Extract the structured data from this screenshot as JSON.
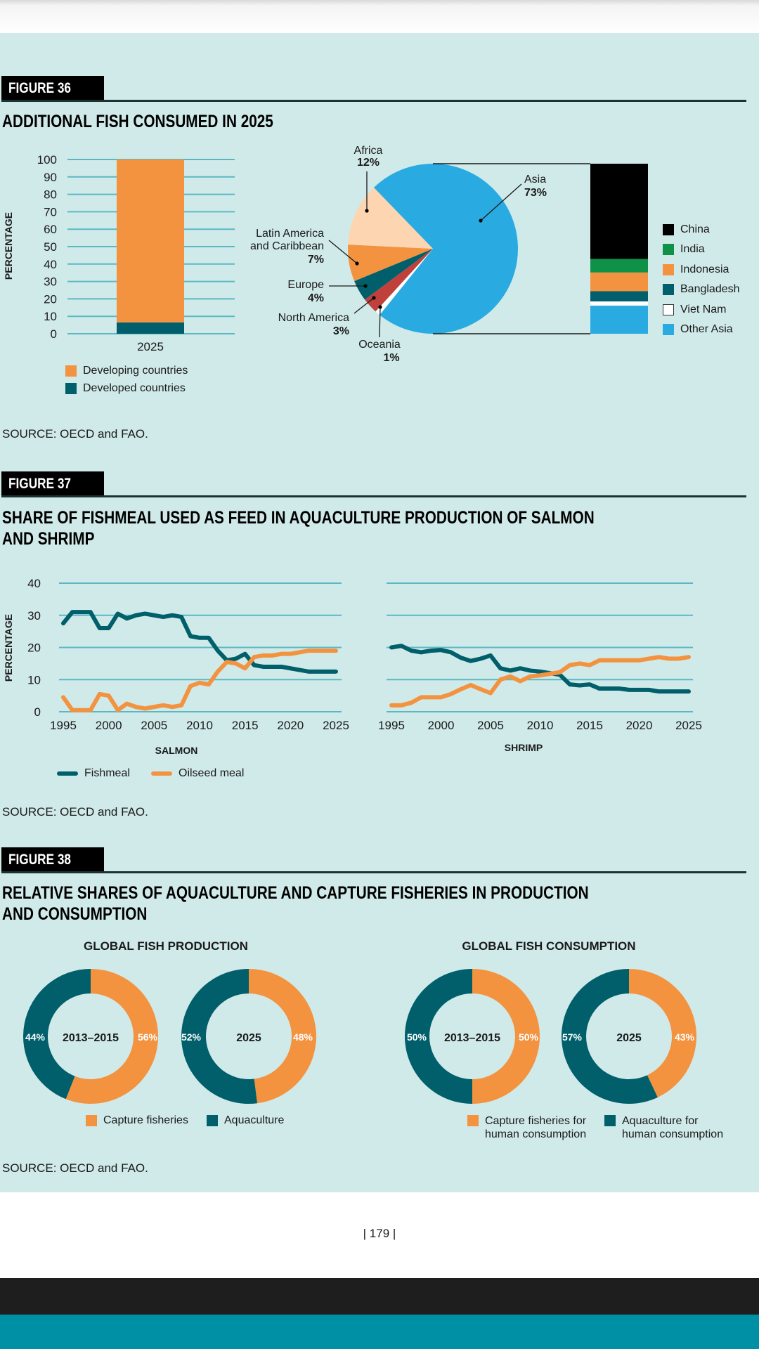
{
  "figures": [
    {
      "label": "FIGURE 36",
      "title_lines": [
        "ADDITIONAL FISH CONSUMED IN 2025"
      ],
      "source": "SOURCE: OECD and FAO."
    },
    {
      "label": "FIGURE 37",
      "title_lines": [
        "SHARE OF FISHMEAL USED AS FEED IN AQUACULTURE PRODUCTION OF SALMON",
        "AND SHRIMP"
      ],
      "source": "SOURCE: OECD and FAO."
    },
    {
      "label": "FIGURE 38",
      "title_lines": [
        "RELATIVE SHARES OF AQUACULTURE AND CAPTURE FISHERIES IN PRODUCTION",
        "AND CONSUMPTION"
      ],
      "source": "SOURCE: OECD and FAO."
    }
  ],
  "page_number": "| 179 |",
  "colors": {
    "background": "#d0eae9",
    "orange": "#f39340",
    "dark_teal": "#005f6b",
    "grid": "#5bb8c3",
    "asia_blue": "#29abe2",
    "africa_peach": "#fdd5b1",
    "north_america_red": "#c0413c",
    "india_green": "#109148",
    "china_black": "#000000",
    "oceania_white": "#ffffff"
  },
  "chart_data": [
    {
      "type": "bar",
      "stacked": true,
      "categories": [
        "2025"
      ],
      "series": [
        {
          "name": "Developing countries",
          "values": [
            93.5
          ],
          "color": "#f39340"
        },
        {
          "name": "Developed countries",
          "values": [
            6.5
          ],
          "color": "#005f6b"
        }
      ],
      "xlabel": "",
      "ylabel": "PERCENTAGE",
      "ylim": [
        0,
        100
      ],
      "yticks": [
        0,
        10,
        20,
        30,
        40,
        50,
        60,
        70,
        80,
        90,
        100
      ],
      "grid": true,
      "legend_placement": "bottom"
    },
    {
      "type": "pie",
      "slices": [
        {
          "label": "Asia",
          "value": 73,
          "value_label": "73%",
          "color": "#29abe2"
        },
        {
          "label": "Oceania",
          "value": 1,
          "value_label": "1%",
          "color": "#ffffff"
        },
        {
          "label": "North America",
          "value": 3,
          "value_label": "3%",
          "color": "#c0413c"
        },
        {
          "label": "Europe",
          "value": 4,
          "value_label": "4%",
          "color": "#005f6b"
        },
        {
          "label": "Latin America and Caribbean",
          "value": 7,
          "value_label": "7%",
          "color": "#f39340"
        },
        {
          "label": "Africa",
          "value": 12,
          "value_label": "12%",
          "color": "#fdd5b1"
        }
      ]
    },
    {
      "type": "bar",
      "stacked": true,
      "categories": [
        "Asia"
      ],
      "series": [
        {
          "name": "China",
          "values": [
            56
          ],
          "color": "#000000"
        },
        {
          "name": "India",
          "values": [
            8
          ],
          "color": "#109148"
        },
        {
          "name": "Indonesia",
          "values": [
            11
          ],
          "color": "#f39340"
        },
        {
          "name": "Bangladesh",
          "values": [
            6
          ],
          "color": "#005f6b"
        },
        {
          "name": "Viet Nam",
          "values": [
            2.5
          ],
          "color": "#ffffff"
        },
        {
          "name": "Other Asia",
          "values": [
            16.5
          ],
          "color": "#29abe2"
        }
      ],
      "legend_placement": "right"
    },
    {
      "type": "line",
      "xlabel": "SALMON",
      "ylabel": "PERCENTAGE",
      "ylim": [
        0,
        40
      ],
      "yticks": [
        0,
        10,
        20,
        30,
        40
      ],
      "xticks": [
        1995,
        2000,
        2005,
        2010,
        2015,
        2020,
        2025
      ],
      "grid": true,
      "x": [
        1995,
        1996,
        1997,
        1998,
        1999,
        2000,
        2001,
        2002,
        2003,
        2004,
        2005,
        2006,
        2007,
        2008,
        2009,
        2010,
        2011,
        2012,
        2013,
        2014,
        2015,
        2016,
        2017,
        2018,
        2019,
        2020,
        2021,
        2022,
        2023,
        2024,
        2025
      ],
      "series": [
        {
          "name": "Fishmeal",
          "color": "#005f6b",
          "values": [
            27.5,
            31,
            31,
            31,
            26,
            26,
            30.5,
            29,
            30,
            30.5,
            30,
            29.5,
            30,
            29.5,
            23.5,
            23,
            23,
            19,
            16,
            16.5,
            18,
            14.5,
            14,
            14,
            14,
            13.5,
            13,
            12.5,
            12.5,
            12.5,
            12.5
          ]
        },
        {
          "name": "Oilseed meal",
          "color": "#f39340",
          "values": [
            4.5,
            0.5,
            0.5,
            0.5,
            5.5,
            5,
            0.5,
            2.5,
            1.5,
            1,
            1.5,
            2,
            1.5,
            2,
            8,
            9,
            8.5,
            12.5,
            15.5,
            15,
            13.5,
            17,
            17.5,
            17.5,
            18,
            18,
            18.5,
            19,
            19,
            19,
            19
          ]
        }
      ],
      "legend_placement": "bottom-left"
    },
    {
      "type": "line",
      "xlabel": "SHRIMP",
      "ylim": [
        0,
        40
      ],
      "xticks": [
        1995,
        2000,
        2005,
        2010,
        2015,
        2020,
        2025
      ],
      "grid": true,
      "x": [
        1995,
        1996,
        1997,
        1998,
        1999,
        2000,
        2001,
        2002,
        2003,
        2004,
        2005,
        2006,
        2007,
        2008,
        2009,
        2010,
        2011,
        2012,
        2013,
        2014,
        2015,
        2016,
        2017,
        2018,
        2019,
        2020,
        2021,
        2022,
        2023,
        2024,
        2025
      ],
      "series": [
        {
          "name": "Fishmeal",
          "color": "#005f6b",
          "values": [
            20,
            20.5,
            19,
            18.5,
            19,
            19.2,
            18.5,
            16.8,
            15.8,
            16.5,
            17.5,
            13.5,
            12.8,
            13.5,
            12.8,
            12.5,
            12,
            11.5,
            8.5,
            8.2,
            8.5,
            7.2,
            7.2,
            7.2,
            6.8,
            6.8,
            6.8,
            6.3,
            6.3,
            6.3,
            6.3
          ]
        },
        {
          "name": "Oilseed meal",
          "color": "#f39340",
          "values": [
            2,
            2,
            2.8,
            4.5,
            4.5,
            4.5,
            5.5,
            7,
            8.3,
            7,
            5.8,
            10,
            11,
            9.5,
            11,
            11.3,
            11.8,
            12.3,
            14.5,
            15,
            14.5,
            16,
            16,
            16,
            16,
            16,
            16.5,
            17,
            16.5,
            16.5,
            17
          ]
        }
      ]
    },
    {
      "type": "pie",
      "variant": "donut",
      "title": "GLOBAL FISH PRODUCTION",
      "legend": [
        {
          "name": "Capture fisheries",
          "color": "#f39340"
        },
        {
          "name": "Aquaculture",
          "color": "#005f6b"
        }
      ],
      "donuts": [
        {
          "center_label": "2013–2015",
          "capture": 56,
          "capture_label": "56%",
          "aquaculture": 44,
          "aquaculture_label": "44%"
        },
        {
          "center_label": "2025",
          "capture": 48,
          "capture_label": "48%",
          "aquaculture": 52,
          "aquaculture_label": "52%"
        }
      ]
    },
    {
      "type": "pie",
      "variant": "donut",
      "title": "GLOBAL FISH CONSUMPTION",
      "legend": [
        {
          "name": "Capture fisheries for human consumption",
          "color": "#f39340"
        },
        {
          "name": "Aquaculture for human consumption",
          "color": "#005f6b"
        }
      ],
      "donuts": [
        {
          "center_label": "2013–2015",
          "capture": 50,
          "capture_label": "50%",
          "aquaculture": 50,
          "aquaculture_label": "50%"
        },
        {
          "center_label": "2025",
          "capture": 43,
          "capture_label": "43%",
          "aquaculture": 57,
          "aquaculture_label": "57%"
        }
      ]
    }
  ]
}
